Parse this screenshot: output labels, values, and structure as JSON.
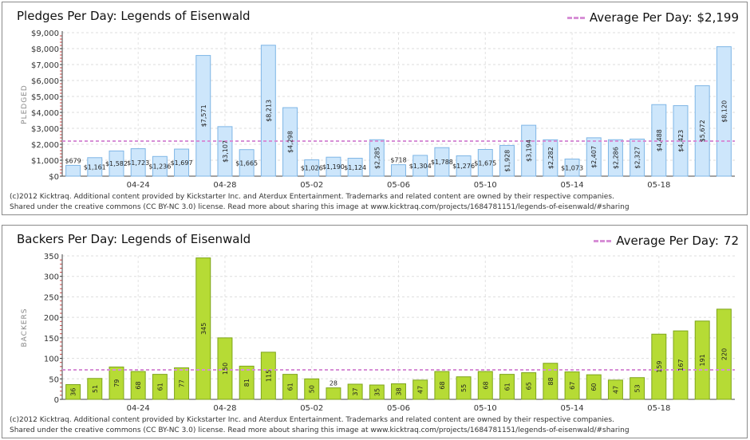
{
  "chart_data": [
    {
      "type": "bar",
      "title": "Pledges Per Day: Legends of Eisenwald",
      "ylabel": "PLEDGED",
      "xlabel": "",
      "ylim": [
        0,
        9000
      ],
      "yticks": [
        "$0",
        "$1,000",
        "$2,000",
        "$3,000",
        "$4,000",
        "$5,000",
        "$6,000",
        "$7,000",
        "$8,000",
        "$9,000"
      ],
      "xtick_labels": [
        {
          "label": "04-24",
          "index": 3.5
        },
        {
          "label": "04-28",
          "index": 7.5
        },
        {
          "label": "05-02",
          "index": 11.5
        },
        {
          "label": "05-06",
          "index": 15.5
        },
        {
          "label": "05-10",
          "index": 19.5
        },
        {
          "label": "05-14",
          "index": 23.5
        },
        {
          "label": "05-18",
          "index": 27.5
        }
      ],
      "values": [
        679,
        1161,
        1582,
        1723,
        1236,
        1697,
        7571,
        3107,
        1665,
        8213,
        4298,
        1026,
        1190,
        1124,
        2285,
        718,
        1304,
        1788,
        1276,
        1675,
        1928,
        3194,
        2282,
        1073,
        2407,
        2286,
        2327,
        4488,
        4423,
        5672,
        8120
      ],
      "labels": [
        "$679",
        "$1,161",
        "$1,582",
        "$1,723",
        "$1,236",
        "$1,697",
        "$7,571",
        "$3,107",
        "$1,665",
        "$8,213",
        "$4,298",
        "$1,026",
        "$1,190",
        "$1,124",
        "$2,285",
        "$718",
        "$1,304",
        "$1,788",
        "$1,276",
        "$1,675",
        "$1,928",
        "$3,194",
        "$2,282",
        "$1,073",
        "$2,407",
        "$2,286",
        "$2,327",
        "$4,488",
        "$4,423",
        "$5,672",
        "$8,120"
      ],
      "average": 2199,
      "legend_label": "Average Per Day:",
      "legend_value": "$2,199",
      "bar_color": "#cde6fb",
      "bar_stroke": "#7fb6e6",
      "avg_color": "#d78fd6",
      "credit_lines": [
        "(c)2012 Kicktraq. Additional content provided by Kickstarter Inc. and Aterdux Entertainment. Trademarks and related content are owned by their respective companies.",
        "Shared under the creative commons (CC BY-NC 3.0) license. Read more about sharing this image at www.kicktraq.com/projects/1684781151/legends-of-eisenwald/#sharing"
      ]
    },
    {
      "type": "bar",
      "title": "Backers Per Day: Legends of Eisenwald",
      "ylabel": "BACKERS",
      "xlabel": "",
      "ylim": [
        0,
        350
      ],
      "yticks": [
        "0",
        "50",
        "100",
        "150",
        "200",
        "250",
        "300",
        "350"
      ],
      "xtick_labels": [
        {
          "label": "04-24",
          "index": 3.5
        },
        {
          "label": "04-28",
          "index": 7.5
        },
        {
          "label": "05-02",
          "index": 11.5
        },
        {
          "label": "05-06",
          "index": 15.5
        },
        {
          "label": "05-10",
          "index": 19.5
        },
        {
          "label": "05-14",
          "index": 23.5
        },
        {
          "label": "05-18",
          "index": 27.5
        }
      ],
      "values": [
        36,
        51,
        79,
        68,
        61,
        77,
        345,
        150,
        81,
        115,
        61,
        50,
        28,
        37,
        35,
        38,
        47,
        68,
        55,
        68,
        61,
        65,
        88,
        67,
        60,
        47,
        53,
        159,
        167,
        191,
        220
      ],
      "labels": [
        "36",
        "51",
        "79",
        "68",
        "61",
        "77",
        "345",
        "150",
        "81",
        "115",
        "61",
        "50",
        "28",
        "37",
        "35",
        "38",
        "47",
        "68",
        "55",
        "68",
        "61",
        "65",
        "88",
        "67",
        "60",
        "47",
        "53",
        "159",
        "167",
        "191",
        "220"
      ],
      "average": 72,
      "legend_label": "Average Per Day:",
      "legend_value": "72",
      "bar_color": "#b6db35",
      "bar_stroke": "#7ea51b",
      "avg_color": "#d78fd6",
      "credit_lines": [
        "(c)2012 Kicktraq. Additional content provided by Kickstarter Inc. and Aterdux Entertainment. Trademarks and related content are owned by their respective companies.",
        "Shared under the creative commons (CC BY-NC 3.0) license. Read more about sharing this image at www.kicktraq.com/projects/1684781151/legends-of-eisenwald/#sharing"
      ]
    }
  ]
}
